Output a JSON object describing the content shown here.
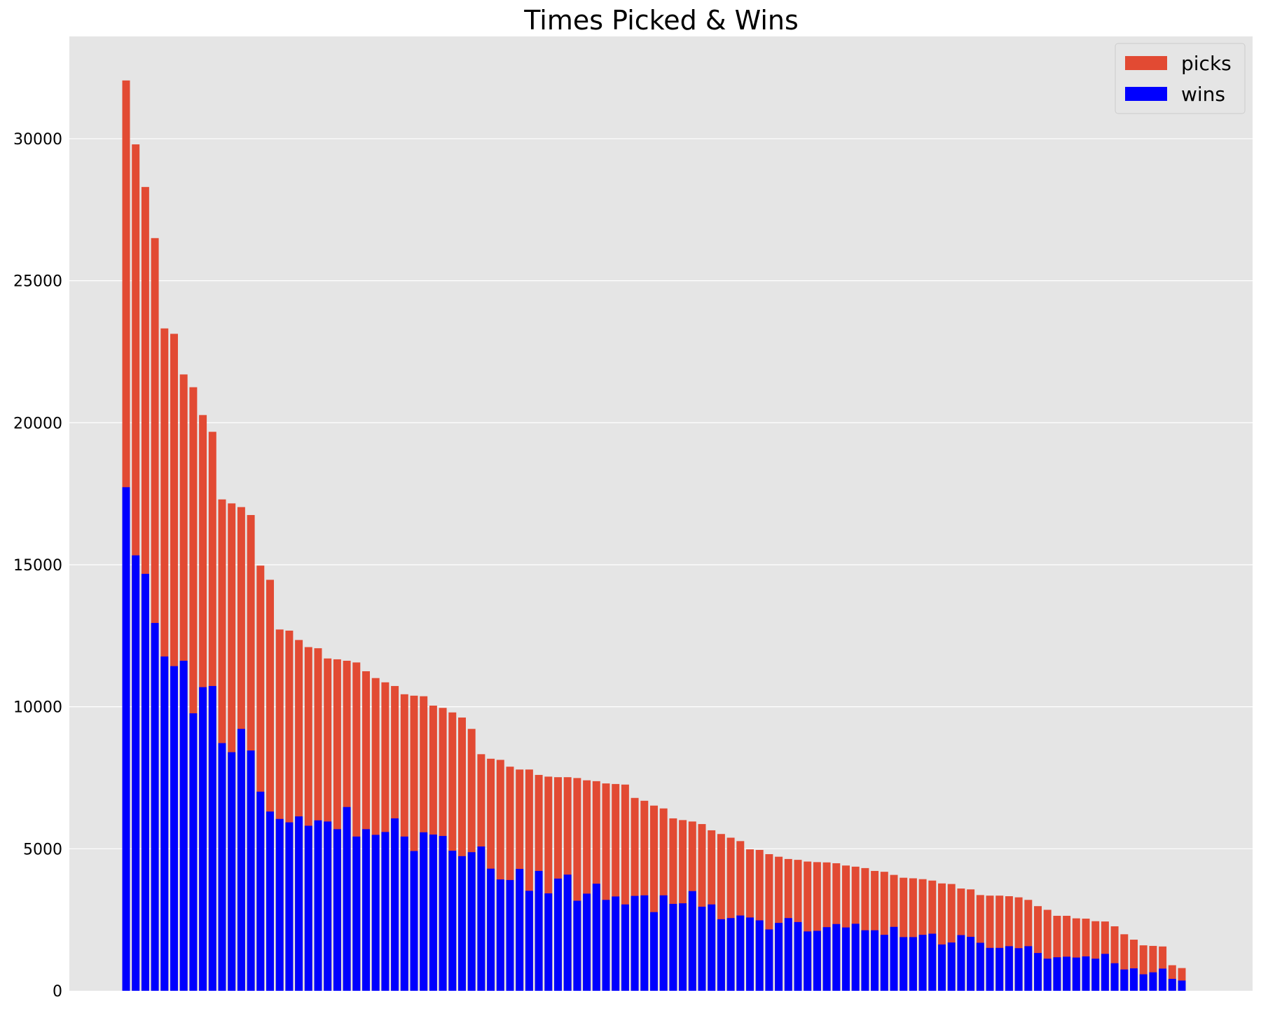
{
  "chart_data": {
    "type": "bar",
    "title": "Times Picked & Wins",
    "xlabel": "",
    "ylabel": "",
    "ylim": [
      0,
      33600
    ],
    "yticks": [
      0,
      5000,
      10000,
      15000,
      20000,
      25000,
      30000
    ],
    "grid": "horizontal",
    "legend_position": "top-right",
    "x_tick_labels": "none",
    "series": [
      {
        "name": "picks",
        "color": "#e24a33",
        "values": [
          32050,
          29800,
          28300,
          26500,
          23320,
          23130,
          21700,
          21250,
          20270,
          19680,
          17300,
          17160,
          17030,
          16750,
          14970,
          14470,
          12720,
          12680,
          12350,
          12100,
          12060,
          11700,
          11670,
          11620,
          11560,
          11250,
          11010,
          10860,
          10730,
          10440,
          10390,
          10370,
          10040,
          9960,
          9800,
          9620,
          9220,
          8330,
          8170,
          8130,
          7890,
          7790,
          7790,
          7600,
          7540,
          7520,
          7520,
          7490,
          7410,
          7380,
          7300,
          7280,
          7260,
          6790,
          6690,
          6520,
          6420,
          6070,
          6010,
          5960,
          5870,
          5650,
          5520,
          5390,
          5270,
          4980,
          4960,
          4810,
          4720,
          4640,
          4610,
          4550,
          4530,
          4520,
          4490,
          4410,
          4370,
          4320,
          4220,
          4190,
          4080,
          3980,
          3960,
          3930,
          3880,
          3780,
          3760,
          3600,
          3570,
          3370,
          3350,
          3350,
          3330,
          3290,
          3200,
          2980,
          2850,
          2640,
          2640,
          2550,
          2540,
          2450,
          2440,
          2270,
          1990,
          1800,
          1600,
          1580,
          1560,
          900,
          800
        ]
      },
      {
        "name": "wins",
        "color": "#0000ff",
        "values": [
          17730,
          15330,
          14680,
          12950,
          11770,
          11430,
          11620,
          9770,
          10690,
          10730,
          8720,
          8400,
          9220,
          8460,
          7010,
          6310,
          6050,
          5930,
          6140,
          5810,
          6000,
          5960,
          5690,
          6470,
          5430,
          5690,
          5490,
          5590,
          6070,
          5430,
          4920,
          5580,
          5500,
          5450,
          4930,
          4740,
          4880,
          5080,
          4300,
          3920,
          3900,
          4290,
          3520,
          4220,
          3430,
          3950,
          4090,
          3170,
          3420,
          3770,
          3200,
          3320,
          3040,
          3340,
          3360,
          2770,
          3360,
          3060,
          3080,
          3510,
          2960,
          3040,
          2520,
          2560,
          2650,
          2580,
          2480,
          2160,
          2390,
          2560,
          2420,
          2090,
          2110,
          2240,
          2350,
          2230,
          2360,
          2130,
          2130,
          1970,
          2250,
          1890,
          1890,
          1970,
          2010,
          1630,
          1700,
          1960,
          1900,
          1690,
          1510,
          1510,
          1570,
          1500,
          1570,
          1330,
          1130,
          1180,
          1200,
          1170,
          1210,
          1130,
          1300,
          970,
          750,
          790,
          580,
          650,
          780,
          420,
          360
        ]
      }
    ]
  }
}
